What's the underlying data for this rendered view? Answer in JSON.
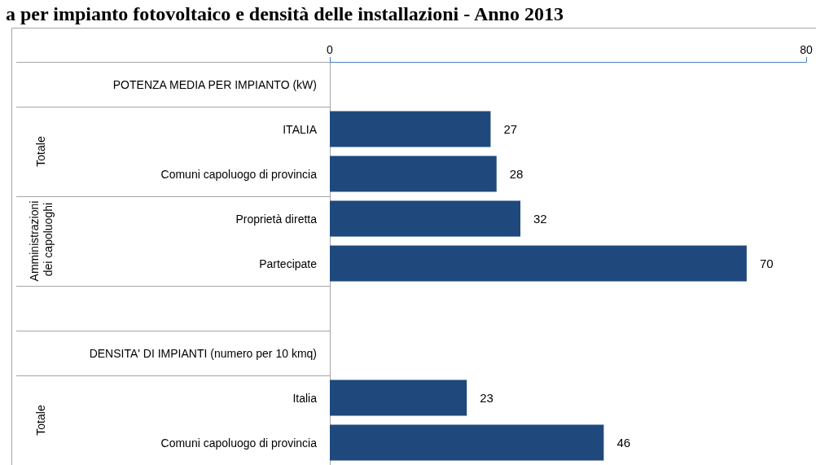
{
  "chart_data": {
    "type": "bar",
    "orientation": "horizontal",
    "title": "a per impianto fotovoltaico e densità delle installazioni - Anno 2013",
    "categories": [
      "POTENZA MEDIA PER IMPIANTO (kW)",
      "ITALIA",
      "Comuni capoluogo di provincia",
      "Proprietà diretta",
      "Partecipate",
      null,
      "DENSITA' DI IMPIANTI (numero per 10 kmq)",
      "Italia",
      "Comuni capoluogo di provincia"
    ],
    "values": [
      null,
      27,
      28,
      32,
      70,
      null,
      null,
      23,
      46
    ],
    "color": "#1f497d",
    "xlim": [
      0,
      80
    ],
    "xticks": [
      0,
      80
    ],
    "data_labels": true,
    "annotations": [
      "Totale",
      "Amministrazioni dei capoluoghi",
      "Totale"
    ]
  }
}
